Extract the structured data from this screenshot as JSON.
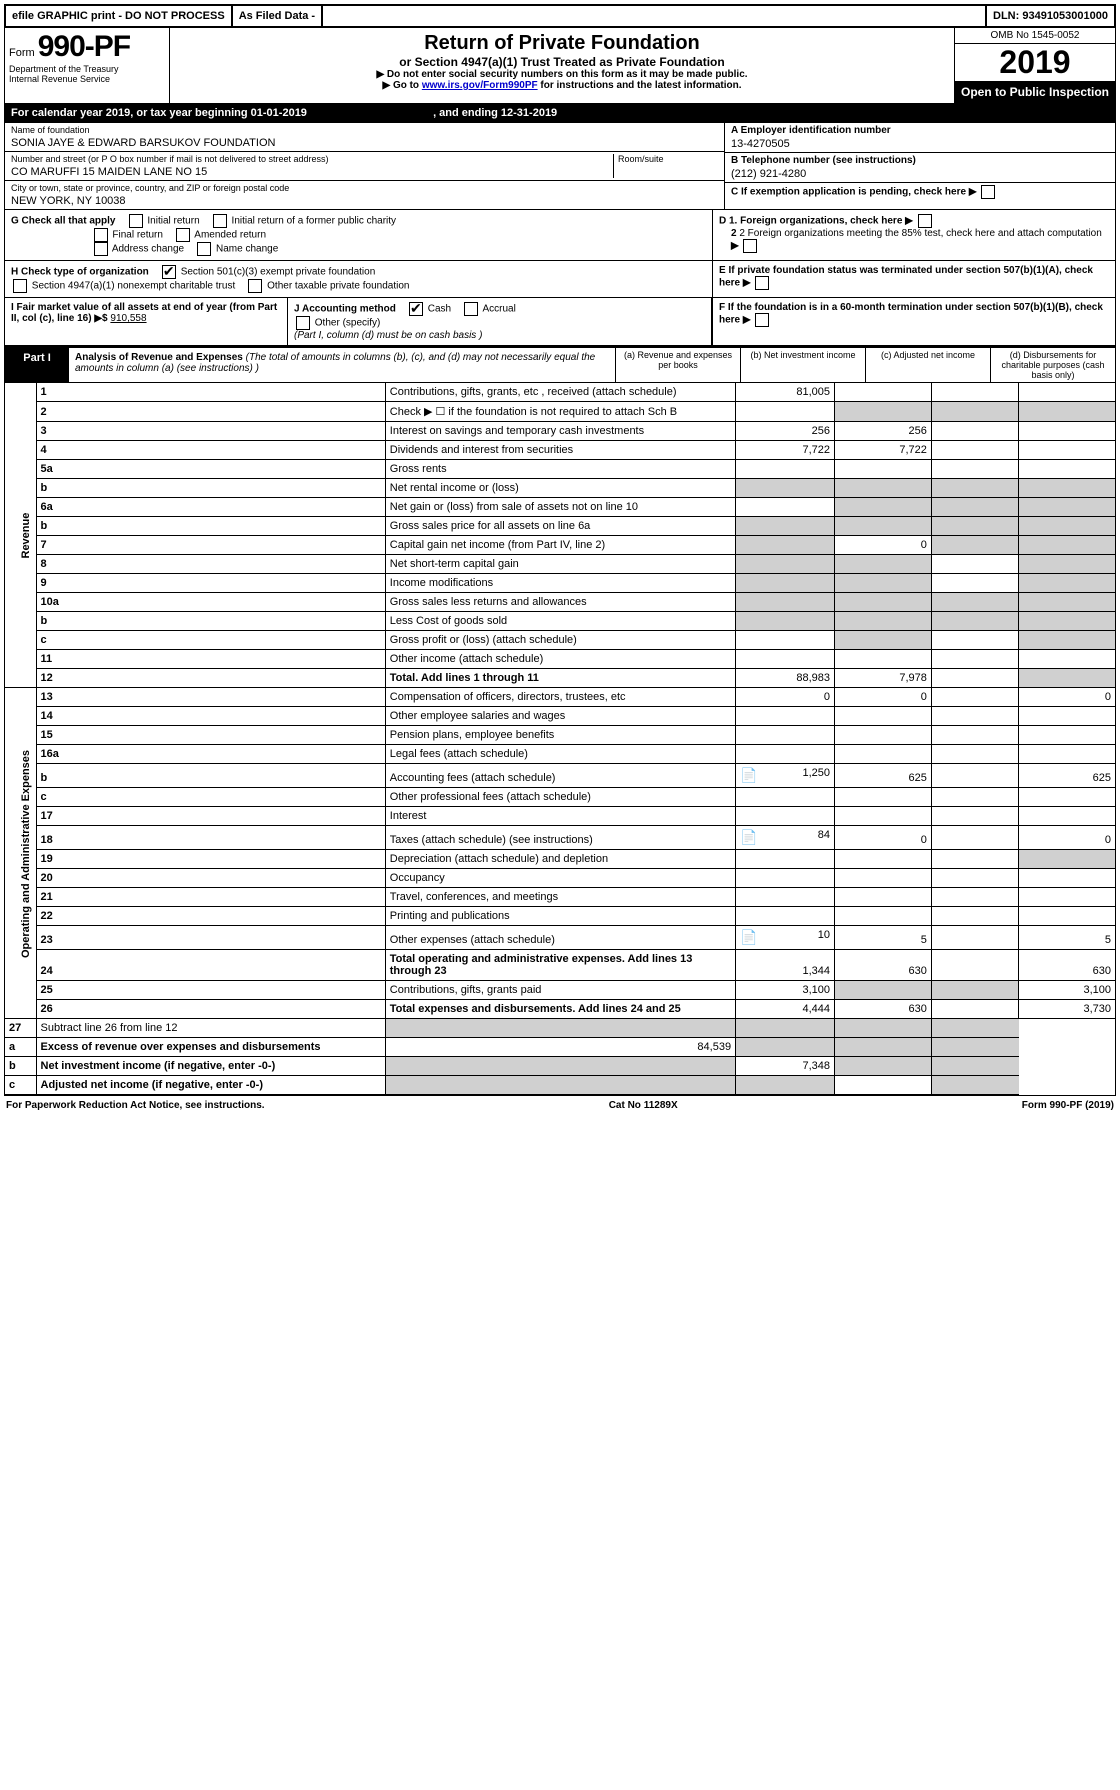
{
  "topbar": {
    "efile": "efile GRAPHIC print - DO NOT PROCESS",
    "asfiled": "As Filed Data -",
    "dln_label": "DLN:",
    "dln": "93491053001000"
  },
  "header": {
    "form_prefix": "Form",
    "form_no": "990-PF",
    "dept1": "Department of the Treasury",
    "dept2": "Internal Revenue Service",
    "title": "Return of Private Foundation",
    "subtitle": "or Section 4947(a)(1) Trust Treated as Private Foundation",
    "instr1": "▶ Do not enter social security numbers on this form as it may be made public.",
    "instr2_pre": "▶ Go to ",
    "instr2_link": "www.irs.gov/Form990PF",
    "instr2_post": " for instructions and the latest information.",
    "omb": "OMB No 1545-0052",
    "year": "2019",
    "open": "Open to Public Inspection"
  },
  "calyear": {
    "text_pre": "For calendar year 2019, or tax year beginning ",
    "begin": "01-01-2019",
    "mid": " , and ending ",
    "end": "12-31-2019"
  },
  "info": {
    "name_label": "Name of foundation",
    "name": "SONIA JAYE & EDWARD BARSUKOV FOUNDATION",
    "addr_label": "Number and street (or P O  box number if mail is not delivered to street address)",
    "addr": "CO MARUFFI 15 MAIDEN LANE NO 15",
    "room_label": "Room/suite",
    "city_label": "City or town, state or province, country, and ZIP or foreign postal code",
    "city": "NEW YORK, NY 10038",
    "a_label": "A Employer identification number",
    "a_val": "13-4270505",
    "b_label": "B Telephone number (see instructions)",
    "b_val": "(212) 921-4280",
    "c_label": "C If exemption application is pending, check here"
  },
  "g": {
    "label": "G Check all that apply",
    "opts": [
      "Initial return",
      "Initial return of a former public charity",
      "Final return",
      "Amended return",
      "Address change",
      "Name change"
    ],
    "d1": "D 1. Foreign organizations, check here",
    "d2": "2 Foreign organizations meeting the 85% test, check here and attach computation",
    "e": "E  If private foundation status was terminated under section 507(b)(1)(A), check here"
  },
  "h": {
    "label": "H Check type of organization",
    "opt1": "Section 501(c)(3) exempt private foundation",
    "opt2": "Section 4947(a)(1) nonexempt charitable trust",
    "opt3": "Other taxable private foundation"
  },
  "i": {
    "label": "I Fair market value of all assets at end of year (from Part II, col  (c), line 16)",
    "val": "910,558",
    "j_label": "J Accounting method",
    "j_cash": "Cash",
    "j_accrual": "Accrual",
    "j_other": "Other (specify)",
    "j_note": "(Part I, column (d) must be on cash basis )",
    "f": "F  If the foundation is in a 60-month termination under section 507(b)(1)(B), check here"
  },
  "part1": {
    "label": "Part I",
    "title": "Analysis of Revenue and Expenses",
    "note": "(The total of amounts in columns (b), (c), and (d) may not necessarily equal the amounts in column (a) (see instructions) )",
    "col_a": "(a)  Revenue and expenses per books",
    "col_b": "(b) Net investment income",
    "col_c": "(c) Adjusted net income",
    "col_d": "(d) Disbursements for charitable purposes (cash basis only)"
  },
  "side": {
    "rev": "Revenue",
    "exp": "Operating and Administrative Expenses"
  },
  "rows": [
    {
      "n": "1",
      "d": "Contributions, gifts, grants, etc , received (attach schedule)",
      "a": "81,005",
      "b": "",
      "c": "",
      "dcol": ""
    },
    {
      "n": "2",
      "d": "Check ▶ ☐ if the foundation is not required to attach Sch B",
      "a": "",
      "b": "",
      "c": "",
      "dcol": "",
      "grayBCD": true
    },
    {
      "n": "3",
      "d": "Interest on savings and temporary cash investments",
      "a": "256",
      "b": "256",
      "c": "",
      "dcol": ""
    },
    {
      "n": "4",
      "d": "Dividends and interest from securities",
      "a": "7,722",
      "b": "7,722",
      "c": "",
      "dcol": ""
    },
    {
      "n": "5a",
      "d": "Gross rents",
      "a": "",
      "b": "",
      "c": "",
      "dcol": ""
    },
    {
      "n": "b",
      "d": "Net rental income or (loss)",
      "a": "",
      "b": "",
      "c": "",
      "dcol": "",
      "grayAll": true
    },
    {
      "n": "6a",
      "d": "Net gain or (loss) from sale of assets not on line 10",
      "a": "",
      "b": "",
      "c": "",
      "dcol": "",
      "grayBCD": true
    },
    {
      "n": "b",
      "d": "Gross sales price for all assets on line 6a",
      "a": "",
      "b": "",
      "c": "",
      "dcol": "",
      "grayAll": true
    },
    {
      "n": "7",
      "d": "Capital gain net income (from Part IV, line 2)",
      "a": "",
      "b": "0",
      "c": "",
      "dcol": "",
      "grayA": true,
      "grayCD": true
    },
    {
      "n": "8",
      "d": "Net short-term capital gain",
      "a": "",
      "b": "",
      "c": "",
      "dcol": "",
      "grayAB": true,
      "grayD": true
    },
    {
      "n": "9",
      "d": "Income modifications",
      "a": "",
      "b": "",
      "c": "",
      "dcol": "",
      "grayAB": true,
      "grayD": true
    },
    {
      "n": "10a",
      "d": "Gross sales less returns and allowances",
      "a": "",
      "b": "",
      "c": "",
      "dcol": "",
      "grayAll": true
    },
    {
      "n": "b",
      "d": "Less  Cost of goods sold",
      "a": "",
      "b": "",
      "c": "",
      "dcol": "",
      "grayAll": true
    },
    {
      "n": "c",
      "d": "Gross profit or (loss) (attach schedule)",
      "a": "",
      "b": "",
      "c": "",
      "dcol": "",
      "grayBD": true
    },
    {
      "n": "11",
      "d": "Other income (attach schedule)",
      "a": "",
      "b": "",
      "c": "",
      "dcol": ""
    },
    {
      "n": "12",
      "d": "Total. Add lines 1 through 11",
      "a": "88,983",
      "b": "7,978",
      "c": "",
      "dcol": "",
      "bold": true,
      "grayD": true
    }
  ],
  "exp_rows": [
    {
      "n": "13",
      "d": "Compensation of officers, directors, trustees, etc",
      "a": "0",
      "b": "0",
      "c": "",
      "dcol": "0"
    },
    {
      "n": "14",
      "d": "Other employee salaries and wages",
      "a": "",
      "b": "",
      "c": "",
      "dcol": ""
    },
    {
      "n": "15",
      "d": "Pension plans, employee benefits",
      "a": "",
      "b": "",
      "c": "",
      "dcol": ""
    },
    {
      "n": "16a",
      "d": "Legal fees (attach schedule)",
      "a": "",
      "b": "",
      "c": "",
      "dcol": ""
    },
    {
      "n": "b",
      "d": "Accounting fees (attach schedule)",
      "a": "1,250",
      "b": "625",
      "c": "",
      "dcol": "625",
      "icon": true
    },
    {
      "n": "c",
      "d": "Other professional fees (attach schedule)",
      "a": "",
      "b": "",
      "c": "",
      "dcol": ""
    },
    {
      "n": "17",
      "d": "Interest",
      "a": "",
      "b": "",
      "c": "",
      "dcol": ""
    },
    {
      "n": "18",
      "d": "Taxes (attach schedule) (see instructions)",
      "a": "84",
      "b": "0",
      "c": "",
      "dcol": "0",
      "icon": true
    },
    {
      "n": "19",
      "d": "Depreciation (attach schedule) and depletion",
      "a": "",
      "b": "",
      "c": "",
      "dcol": "",
      "grayD": true
    },
    {
      "n": "20",
      "d": "Occupancy",
      "a": "",
      "b": "",
      "c": "",
      "dcol": ""
    },
    {
      "n": "21",
      "d": "Travel, conferences, and meetings",
      "a": "",
      "b": "",
      "c": "",
      "dcol": ""
    },
    {
      "n": "22",
      "d": "Printing and publications",
      "a": "",
      "b": "",
      "c": "",
      "dcol": ""
    },
    {
      "n": "23",
      "d": "Other expenses (attach schedule)",
      "a": "10",
      "b": "5",
      "c": "",
      "dcol": "5",
      "icon": true
    },
    {
      "n": "24",
      "d": "Total operating and administrative expenses. Add lines 13 through 23",
      "a": "1,344",
      "b": "630",
      "c": "",
      "dcol": "630",
      "bold": true
    },
    {
      "n": "25",
      "d": "Contributions, gifts, grants paid",
      "a": "3,100",
      "b": "",
      "c": "",
      "dcol": "3,100",
      "grayBC": true
    },
    {
      "n": "26",
      "d": "Total expenses and disbursements. Add lines 24 and 25",
      "a": "4,444",
      "b": "630",
      "c": "",
      "dcol": "3,730",
      "bold": true
    }
  ],
  "bottom_rows": [
    {
      "n": "27",
      "d": "Subtract line 26 from line 12",
      "a": "",
      "b": "",
      "c": "",
      "dcol": "",
      "grayAll": true
    },
    {
      "n": "a",
      "d": "Excess of revenue over expenses and disbursements",
      "a": "84,539",
      "b": "",
      "c": "",
      "dcol": "",
      "bold": true,
      "grayBCD": true
    },
    {
      "n": "b",
      "d": "Net investment income (if negative, enter -0-)",
      "a": "",
      "b": "7,348",
      "c": "",
      "dcol": "",
      "bold": true,
      "grayA": true,
      "grayCD": true
    },
    {
      "n": "c",
      "d": "Adjusted net income (if negative, enter -0-)",
      "a": "",
      "b": "",
      "c": "",
      "dcol": "",
      "bold": true,
      "grayAB": true,
      "grayD": true
    }
  ],
  "footer": {
    "left": "For Paperwork Reduction Act Notice, see instructions.",
    "mid": "Cat  No  11289X",
    "right": "Form 990-PF (2019)"
  }
}
